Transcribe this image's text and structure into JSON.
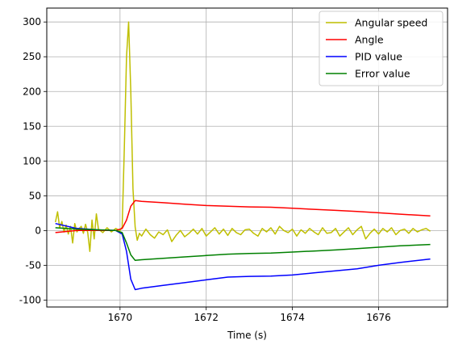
{
  "chart_data": {
    "type": "line",
    "title": "",
    "xlabel": "Time (s)",
    "ylabel": "",
    "xlim": [
      1668.3,
      1677.6
    ],
    "ylim": [
      -110,
      320
    ],
    "xticks": [
      1670,
      1672,
      1674,
      1676
    ],
    "yticks": [
      -100,
      -50,
      0,
      50,
      100,
      150,
      200,
      250,
      300
    ],
    "grid": true,
    "legend_position": "top-right",
    "series": [
      {
        "name": "Angular speed",
        "color": "#bfbf00",
        "x": [
          1668.5,
          1668.55,
          1668.6,
          1668.65,
          1668.7,
          1668.75,
          1668.8,
          1668.85,
          1668.9,
          1668.95,
          1669.0,
          1669.05,
          1669.1,
          1669.15,
          1669.2,
          1669.25,
          1669.3,
          1669.35,
          1669.4,
          1669.45,
          1669.5,
          1669.6,
          1669.7,
          1669.8,
          1669.9,
          1670.0,
          1670.05,
          1670.1,
          1670.15,
          1670.2,
          1670.25,
          1670.3,
          1670.35,
          1670.4,
          1670.45,
          1670.5,
          1670.6,
          1670.7,
          1670.8,
          1670.9,
          1671.0,
          1671.1,
          1671.2,
          1671.3,
          1671.4,
          1671.5,
          1671.6,
          1671.7,
          1671.8,
          1671.9,
          1672.0,
          1672.1,
          1672.2,
          1672.3,
          1672.4,
          1672.5,
          1672.6,
          1672.7,
          1672.8,
          1672.9,
          1673.0,
          1673.1,
          1673.2,
          1673.3,
          1673.4,
          1673.5,
          1673.6,
          1673.7,
          1673.8,
          1673.9,
          1674.0,
          1674.1,
          1674.2,
          1674.3,
          1674.4,
          1674.5,
          1674.6,
          1674.7,
          1674.8,
          1674.9,
          1675.0,
          1675.1,
          1675.2,
          1675.3,
          1675.4,
          1675.5,
          1675.6,
          1675.7,
          1675.8,
          1675.9,
          1676.0,
          1676.1,
          1676.2,
          1676.3,
          1676.4,
          1676.5,
          1676.6,
          1676.7,
          1676.8,
          1676.9,
          1677.0,
          1677.1,
          1677.2
        ],
        "y": [
          12,
          27,
          4,
          13,
          -2,
          8,
          -5,
          6,
          -18,
          10,
          -2,
          3,
          6,
          -4,
          9,
          -3,
          -30,
          15,
          -12,
          24,
          2,
          -3,
          4,
          -2,
          3,
          0,
          5,
          120,
          250,
          300,
          200,
          60,
          5,
          -14,
          -4,
          -8,
          2,
          -6,
          -11,
          -2,
          -6,
          1,
          -16,
          -7,
          0,
          -9,
          -4,
          2,
          -5,
          3,
          -8,
          -2,
          4,
          -5,
          2,
          -7,
          3,
          -3,
          -6,
          1,
          2,
          -4,
          -8,
          3,
          -2,
          4,
          -5,
          6,
          0,
          -3,
          2,
          -8,
          1,
          -4,
          3,
          -2,
          -6,
          4,
          -4,
          -3,
          3,
          -8,
          -2,
          4,
          -6,
          1,
          6,
          -12,
          -4,
          2,
          -5,
          3,
          -2,
          4,
          -6,
          0,
          2,
          -4,
          3,
          -2,
          1,
          3,
          -1
        ]
      },
      {
        "name": "Angle",
        "color": "#ff0000",
        "x": [
          1668.5,
          1669.0,
          1669.5,
          1669.9,
          1670.05,
          1670.15,
          1670.25,
          1670.35,
          1670.5,
          1671.0,
          1671.5,
          1672.0,
          1672.5,
          1673.0,
          1673.5,
          1674.0,
          1674.5,
          1675.0,
          1675.5,
          1676.0,
          1676.5,
          1677.2
        ],
        "y": [
          -3,
          0,
          0,
          0,
          3,
          15,
          35,
          43,
          42,
          40,
          38,
          36,
          35,
          34,
          33.5,
          32,
          30.5,
          29,
          27.5,
          25.5,
          23.5,
          21
        ]
      },
      {
        "name": "PID value",
        "color": "#0000ff",
        "x": [
          1668.5,
          1669.0,
          1669.5,
          1669.9,
          1670.05,
          1670.15,
          1670.25,
          1670.35,
          1670.5,
          1671.0,
          1671.5,
          1672.0,
          1672.5,
          1673.0,
          1673.5,
          1674.0,
          1674.5,
          1675.0,
          1675.5,
          1676.0,
          1676.5,
          1677.2
        ],
        "y": [
          10,
          3,
          1,
          0,
          -5,
          -30,
          -70,
          -85,
          -83,
          -79,
          -75,
          -71,
          -67,
          -66,
          -65.5,
          -64,
          -61,
          -58,
          -55,
          -50,
          -46,
          -41
        ]
      },
      {
        "name": "Error value",
        "color": "#008000",
        "x": [
          1668.5,
          1669.0,
          1669.5,
          1669.9,
          1670.05,
          1670.15,
          1670.25,
          1670.35,
          1670.5,
          1671.0,
          1671.5,
          1672.0,
          1672.5,
          1673.0,
          1673.5,
          1674.0,
          1674.5,
          1675.0,
          1675.5,
          1676.0,
          1676.5,
          1677.2
        ],
        "y": [
          4,
          2,
          1,
          0,
          -3,
          -18,
          -35,
          -43,
          -42,
          -40,
          -38,
          -36,
          -34,
          -33,
          -32.5,
          -31,
          -29.5,
          -28,
          -26,
          -24,
          -22,
          -20
        ]
      }
    ]
  }
}
